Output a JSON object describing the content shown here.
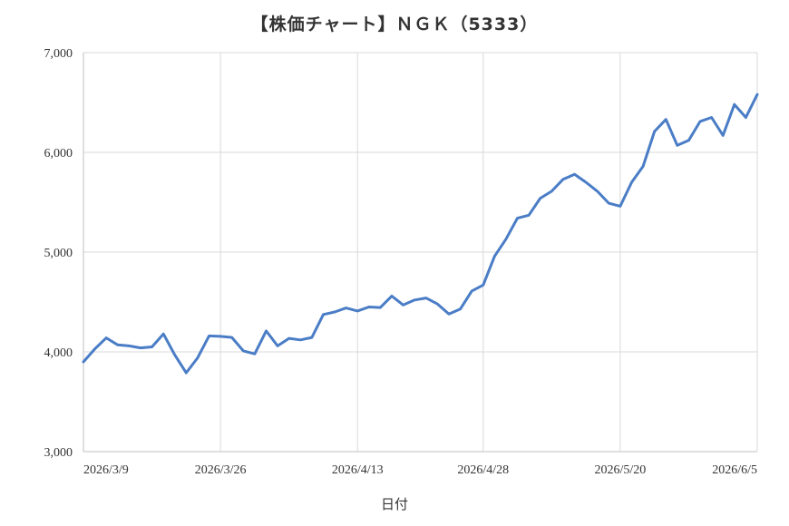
{
  "chart_data": {
    "type": "line",
    "title": "【株価チャート】ＮＧＫ（5333）",
    "xlabel": "日付",
    "ylabel": "",
    "ylim": [
      3000,
      7000
    ],
    "y_ticks": [
      "3,000",
      "4,000",
      "5,000",
      "6,000",
      "7,000"
    ],
    "x_tick_labels": [
      "2026/3/9",
      "2026/3/26",
      "2026/4/13",
      "2026/4/28",
      "2026/5/20",
      "2026/6/5"
    ],
    "x_tick_index": [
      0,
      12,
      24,
      35,
      47,
      59
    ],
    "grid": true,
    "series_color": "#4a7dc6",
    "series": [
      {
        "values": [
          3900,
          4030,
          4140,
          4070,
          4060,
          4040,
          4050,
          4180,
          3970,
          3790,
          3940,
          4160,
          4155,
          4145,
          4010,
          3980,
          4210,
          4060,
          4135,
          4120,
          4145,
          4375,
          4400,
          4440,
          4410,
          4450,
          4445,
          4560,
          4470,
          4520,
          4540,
          4480,
          4380,
          4430,
          4610,
          4670,
          4960,
          5130,
          5340,
          5370,
          5540,
          5610,
          5730,
          5780,
          5700,
          5610,
          5490,
          5460,
          5700,
          5860,
          6210,
          6330,
          6070,
          6120,
          6310,
          6350,
          6170,
          6480,
          6350,
          6580
        ]
      }
    ]
  }
}
